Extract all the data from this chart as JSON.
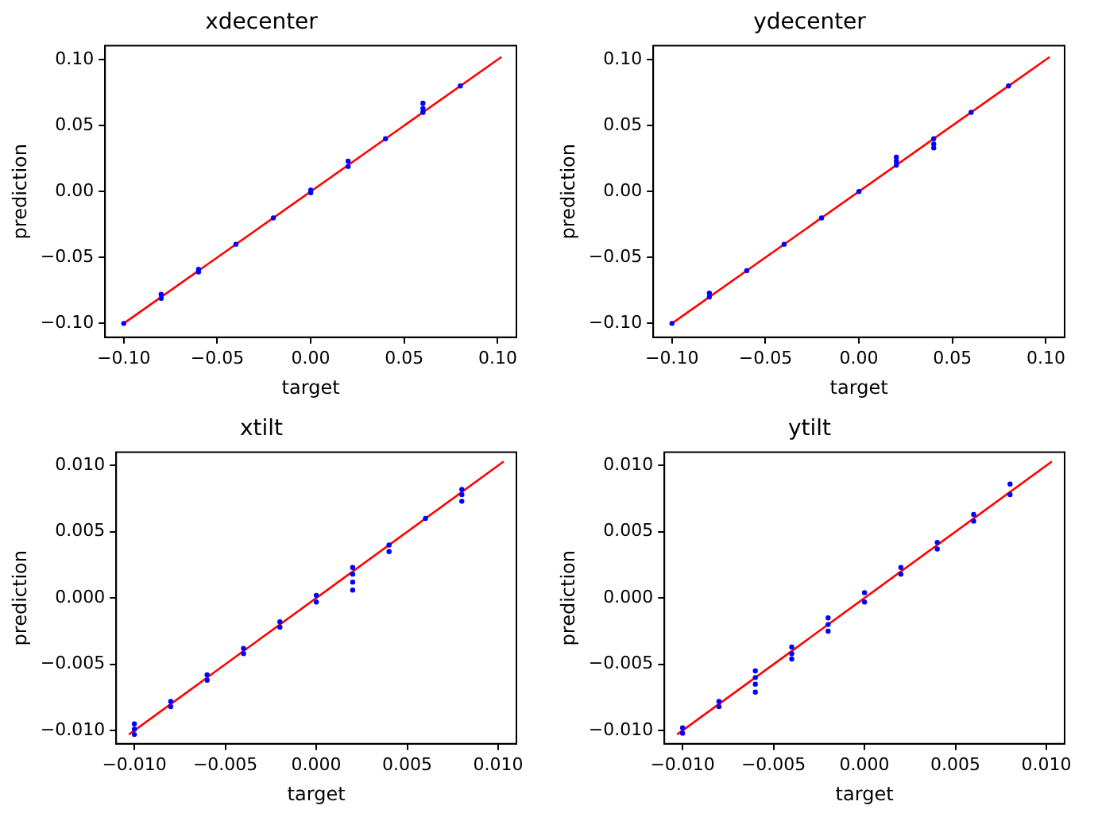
{
  "chart_data": [
    {
      "type": "scatter",
      "title": "xdecenter",
      "xlabel": "target",
      "ylabel": "prediction",
      "xlim": [
        -0.11,
        0.11
      ],
      "ylim": [
        -0.1105,
        0.1105
      ],
      "xticks": [
        {
          "value": -0.1,
          "label": "−0.10"
        },
        {
          "value": -0.05,
          "label": "−0.05"
        },
        {
          "value": 0,
          "label": "0.00"
        },
        {
          "value": 0.05,
          "label": "0.05"
        },
        {
          "value": 0.1,
          "label": "0.10"
        }
      ],
      "yticks": [
        {
          "value": -0.1,
          "label": "−0.10"
        },
        {
          "value": -0.05,
          "label": "−0.05"
        },
        {
          "value": 0,
          "label": "0.00"
        },
        {
          "value": 0.05,
          "label": "0.05"
        },
        {
          "value": 0.1,
          "label": "0.10"
        }
      ],
      "grid": false,
      "legend": false,
      "marker": "circle",
      "series": [
        {
          "type": "scatter",
          "color": "#0000ff",
          "x": [
            -0.1,
            -0.08,
            -0.08,
            -0.06,
            -0.06,
            -0.04,
            -0.02,
            0,
            0,
            0.02,
            0.02,
            0.04,
            0.06,
            0.06,
            0.06,
            0.08
          ],
          "values": [
            -0.1,
            -0.081,
            -0.078,
            -0.061,
            -0.059,
            -0.04,
            -0.02,
            -0.001,
            0.001,
            0.019,
            0.023,
            0.04,
            0.06,
            0.063,
            0.067,
            0.08
          ]
        },
        {
          "type": "line",
          "color": "#ff0000",
          "marker": "none",
          "x": [
            -0.1,
            0.102
          ],
          "values": [
            -0.1,
            0.102
          ]
        }
      ]
    },
    {
      "type": "scatter",
      "title": "ydecenter",
      "xlabel": "target",
      "ylabel": "prediction",
      "xlim": [
        -0.11,
        0.11
      ],
      "ylim": [
        -0.1105,
        0.1105
      ],
      "xticks": [
        {
          "value": -0.1,
          "label": "−0.10"
        },
        {
          "value": -0.05,
          "label": "−0.05"
        },
        {
          "value": 0,
          "label": "0.00"
        },
        {
          "value": 0.05,
          "label": "0.05"
        },
        {
          "value": 0.1,
          "label": "0.10"
        }
      ],
      "yticks": [
        {
          "value": -0.1,
          "label": "−0.10"
        },
        {
          "value": -0.05,
          "label": "−0.05"
        },
        {
          "value": 0,
          "label": "0.00"
        },
        {
          "value": 0.05,
          "label": "0.05"
        },
        {
          "value": 0.1,
          "label": "0.10"
        }
      ],
      "grid": false,
      "legend": false,
      "marker": "circle",
      "series": [
        {
          "type": "scatter",
          "color": "#0000ff",
          "x": [
            -0.1,
            -0.08,
            -0.08,
            -0.06,
            -0.04,
            -0.02,
            0,
            0.02,
            0.02,
            0.02,
            0.04,
            0.04,
            0.04,
            0.06,
            0.08
          ],
          "values": [
            -0.1,
            -0.08,
            -0.077,
            -0.06,
            -0.04,
            -0.02,
            0,
            0.02,
            0.023,
            0.026,
            0.033,
            0.036,
            0.04,
            0.06,
            0.08
          ]
        },
        {
          "type": "line",
          "color": "#ff0000",
          "marker": "none",
          "x": [
            -0.1,
            0.102
          ],
          "values": [
            -0.1,
            0.102
          ]
        }
      ]
    },
    {
      "type": "scatter",
      "title": "xtilt",
      "xlabel": "target",
      "ylabel": "prediction",
      "xlim": [
        -0.011,
        0.011
      ],
      "ylim": [
        -0.011,
        0.011
      ],
      "xticks": [
        {
          "value": -0.01,
          "label": "−0.010"
        },
        {
          "value": -0.005,
          "label": "−0.005"
        },
        {
          "value": 0,
          "label": "0.000"
        },
        {
          "value": 0.005,
          "label": "0.005"
        },
        {
          "value": 0.01,
          "label": "0.010"
        }
      ],
      "yticks": [
        {
          "value": -0.01,
          "label": "−0.010"
        },
        {
          "value": -0.005,
          "label": "−0.005"
        },
        {
          "value": 0,
          "label": "0.000"
        },
        {
          "value": 0.005,
          "label": "0.005"
        },
        {
          "value": 0.01,
          "label": "0.010"
        }
      ],
      "grid": false,
      "legend": false,
      "marker": "circle",
      "series": [
        {
          "type": "scatter",
          "color": "#0000ff",
          "x": [
            -0.01,
            -0.01,
            -0.01,
            -0.008,
            -0.008,
            -0.006,
            -0.006,
            -0.004,
            -0.004,
            -0.002,
            -0.002,
            0,
            0,
            0.002,
            0.002,
            0.002,
            0.002,
            0.004,
            0.004,
            0.006,
            0.008,
            0.008,
            0.008
          ],
          "values": [
            -0.0103,
            -0.0099,
            -0.0095,
            -0.0082,
            -0.0078,
            -0.0062,
            -0.0058,
            -0.0042,
            -0.0038,
            -0.0022,
            -0.0018,
            -0.0003,
            0.0002,
            0.0006,
            0.0012,
            0.0018,
            0.0023,
            0.0035,
            0.004,
            0.006,
            0.0073,
            0.0078,
            0.0082
          ]
        },
        {
          "type": "line",
          "color": "#ff0000",
          "marker": "none",
          "x": [
            -0.0103,
            0.0103
          ],
          "values": [
            -0.0103,
            0.0103
          ]
        }
      ]
    },
    {
      "type": "scatter",
      "title": "ytilt",
      "xlabel": "target",
      "ylabel": "prediction",
      "xlim": [
        -0.011,
        0.011
      ],
      "ylim": [
        -0.011,
        0.011
      ],
      "xticks": [
        {
          "value": -0.01,
          "label": "−0.010"
        },
        {
          "value": -0.005,
          "label": "−0.005"
        },
        {
          "value": 0,
          "label": "0.000"
        },
        {
          "value": 0.005,
          "label": "0.005"
        },
        {
          "value": 0.01,
          "label": "0.010"
        }
      ],
      "yticks": [
        {
          "value": -0.01,
          "label": "−0.010"
        },
        {
          "value": -0.005,
          "label": "−0.005"
        },
        {
          "value": 0,
          "label": "0.000"
        },
        {
          "value": 0.005,
          "label": "0.005"
        },
        {
          "value": 0.01,
          "label": "0.010"
        }
      ],
      "grid": false,
      "legend": false,
      "marker": "circle",
      "series": [
        {
          "type": "scatter",
          "color": "#0000ff",
          "x": [
            -0.01,
            -0.01,
            -0.008,
            -0.008,
            -0.006,
            -0.006,
            -0.006,
            -0.006,
            -0.004,
            -0.004,
            -0.004,
            -0.002,
            -0.002,
            -0.002,
            0,
            0,
            0.002,
            0.002,
            0.004,
            0.004,
            0.006,
            0.006,
            0.008,
            0.008
          ],
          "values": [
            -0.0102,
            -0.0098,
            -0.0082,
            -0.0078,
            -0.0071,
            -0.0065,
            -0.006,
            -0.0055,
            -0.0046,
            -0.0042,
            -0.0037,
            -0.0025,
            -0.002,
            -0.0015,
            -0.0003,
            0.0004,
            0.0018,
            0.0023,
            0.0037,
            0.0042,
            0.0058,
            0.0063,
            0.0078,
            0.0086
          ]
        },
        {
          "type": "line",
          "color": "#ff0000",
          "marker": "none",
          "x": [
            -0.0103,
            0.0103
          ],
          "values": [
            -0.0103,
            0.0103
          ]
        }
      ]
    }
  ]
}
